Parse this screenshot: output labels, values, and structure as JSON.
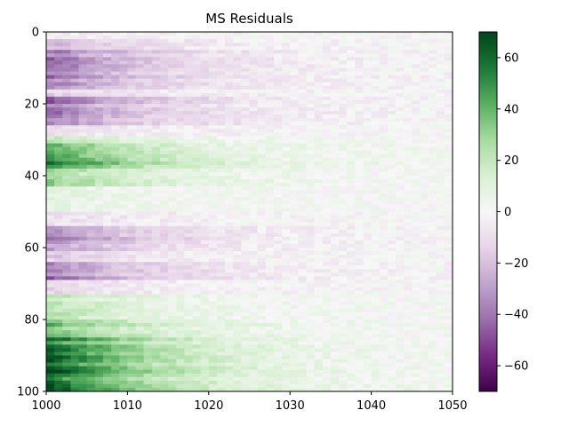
{
  "chart_data": {
    "type": "heatmap",
    "title": "MS Residuals",
    "xlabel": "",
    "ylabel": "",
    "xlim": [
      1000,
      1050
    ],
    "ylim": [
      100,
      0
    ],
    "y_axis_inverted": true,
    "grid": false,
    "colormap": "PRGn",
    "colormap_stops": [
      "#40004b",
      "#762a83",
      "#9970ab",
      "#c2a5cf",
      "#e7d4e8",
      "#f7f7f7",
      "#d9f0d3",
      "#a6dba0",
      "#5aae61",
      "#1b7837",
      "#00441b"
    ],
    "color_range": [
      -70,
      70
    ],
    "x_ticks": [
      {
        "value": 1000,
        "label": "1000"
      },
      {
        "value": 1010,
        "label": "1010"
      },
      {
        "value": 1020,
        "label": "1020"
      },
      {
        "value": 1030,
        "label": "1030"
      },
      {
        "value": 1040,
        "label": "1040"
      },
      {
        "value": 1050,
        "label": "1050"
      }
    ],
    "y_ticks": [
      {
        "value": 0,
        "label": "0"
      },
      {
        "value": 20,
        "label": "20"
      },
      {
        "value": 40,
        "label": "40"
      },
      {
        "value": 60,
        "label": "60"
      },
      {
        "value": 80,
        "label": "80"
      },
      {
        "value": 100,
        "label": "100"
      }
    ],
    "colorbar_ticks": [
      {
        "value": 60,
        "label": "60"
      },
      {
        "value": 40,
        "label": "40"
      },
      {
        "value": 20,
        "label": "20"
      },
      {
        "value": 0,
        "label": "0"
      },
      {
        "value": -20,
        "label": "−20"
      },
      {
        "value": -40,
        "label": "−40"
      },
      {
        "value": -60,
        "label": "−60"
      }
    ],
    "row_bands": [
      {
        "y0": 0,
        "y1": 2,
        "value": -5
      },
      {
        "y0": 2,
        "y1": 5,
        "value": -20
      },
      {
        "y0": 5,
        "y1": 16,
        "value": -38
      },
      {
        "y0": 16,
        "y1": 18,
        "value": -15
      },
      {
        "y0": 18,
        "y1": 26,
        "value": -40
      },
      {
        "y0": 26,
        "y1": 29,
        "value": -10
      },
      {
        "y0": 29,
        "y1": 31,
        "value": 20
      },
      {
        "y0": 31,
        "y1": 38,
        "value": 50
      },
      {
        "y0": 38,
        "y1": 43,
        "value": 28
      },
      {
        "y0": 43,
        "y1": 50,
        "value": 8
      },
      {
        "y0": 50,
        "y1": 54,
        "value": -10
      },
      {
        "y0": 54,
        "y1": 61,
        "value": -35
      },
      {
        "y0": 61,
        "y1": 64,
        "value": -18
      },
      {
        "y0": 64,
        "y1": 69,
        "value": -40
      },
      {
        "y0": 69,
        "y1": 73,
        "value": -12
      },
      {
        "y0": 73,
        "y1": 80,
        "value": 22
      },
      {
        "y0": 80,
        "y1": 85,
        "value": 35
      },
      {
        "y0": 85,
        "y1": 100,
        "value": 60
      }
    ],
    "decay_half_width": 14
  }
}
